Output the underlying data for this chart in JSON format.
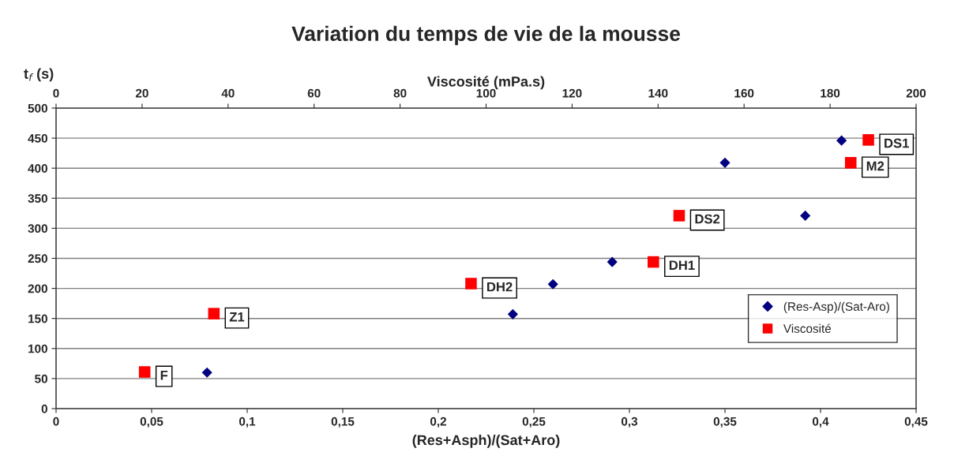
{
  "chart_data": {
    "type": "scatter",
    "title": "Variation du temps de vie de la mousse",
    "xlabel": "(Res+Asph)/(Sat+Aro)",
    "x2label": "Viscosité (mPa.s)",
    "ylabel": "t$_{f}$ (s)",
    "xlim": [
      0,
      0.45
    ],
    "xticks": [
      {
        "value": 0,
        "label": "0"
      },
      {
        "value": 0.05,
        "label": "0,05"
      },
      {
        "value": 0.1,
        "label": "0,1"
      },
      {
        "value": 0.15,
        "label": "0,15"
      },
      {
        "value": 0.2,
        "label": "0,2"
      },
      {
        "value": 0.25,
        "label": "0,25"
      },
      {
        "value": 0.3,
        "label": "0,3"
      },
      {
        "value": 0.35,
        "label": "0,35"
      },
      {
        "value": 0.4,
        "label": "0,4"
      },
      {
        "value": 0.45,
        "label": "0,45"
      }
    ],
    "x2lim": [
      0,
      200
    ],
    "x2ticks": [
      0,
      20,
      40,
      60,
      80,
      100,
      120,
      140,
      160,
      180,
      200
    ],
    "ylim": [
      0,
      500
    ],
    "yticks": [
      0,
      50,
      100,
      150,
      200,
      250,
      300,
      350,
      400,
      450,
      500
    ],
    "grid": "y",
    "legend": "bottom right",
    "series": [
      {
        "name": "(Res-Asp)/(Sat-Aro)",
        "color": "#000080",
        "marker": "diamond",
        "x": [
          0.079,
          0.239,
          0.26,
          0.291,
          0.35,
          0.392,
          0.411
        ],
        "values": [
          60,
          157,
          207,
          244,
          409,
          321,
          446
        ]
      },
      {
        "name": "Viscosité",
        "color": "#ff0000",
        "marker": "square",
        "axis": "x2",
        "x": [
          20.6,
          36.7,
          96.5,
          138.9,
          144.9,
          184.8,
          188.9
        ],
        "values": [
          61,
          158,
          208,
          244,
          321,
          409,
          447
        ],
        "value_labels": [
          "F",
          "Z1",
          "DH2",
          "DH1",
          "DS2",
          "M2",
          "DS1"
        ]
      }
    ]
  }
}
